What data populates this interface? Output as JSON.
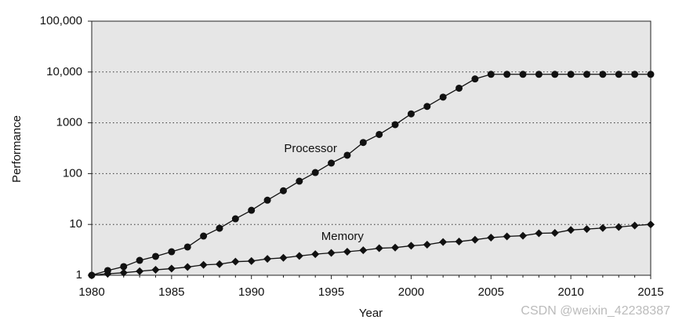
{
  "chart_data": {
    "type": "line",
    "x_label": "Year",
    "y_label": "Performance",
    "log_y": true,
    "grid": true,
    "x": [
      1980,
      1981,
      1982,
      1983,
      1984,
      1985,
      1986,
      1987,
      1988,
      1989,
      1990,
      1991,
      1992,
      1993,
      1994,
      1995,
      1996,
      1997,
      1998,
      1999,
      2000,
      2001,
      2002,
      2003,
      2004,
      2005,
      2006,
      2007,
      2008,
      2009,
      2010,
      2011,
      2012,
      2013,
      2014,
      2015
    ],
    "series": [
      {
        "name": "Processor",
        "color": "#111111",
        "marker": "circle",
        "values": [
          1,
          1.24,
          1.48,
          1.96,
          2.35,
          2.9,
          3.6,
          5.9,
          8.4,
          12.9,
          19,
          30,
          46,
          71,
          105,
          161,
          230,
          410,
          590,
          920,
          1500,
          2100,
          3200,
          4800,
          7300,
          9000,
          9000,
          9000,
          9000,
          9000,
          9000,
          9000,
          9000,
          9000,
          9000,
          9000
        ]
      },
      {
        "name": "Memory",
        "color": "#111111",
        "marker": "diamond",
        "values": [
          1,
          1.07,
          1.12,
          1.2,
          1.28,
          1.35,
          1.45,
          1.6,
          1.65,
          1.85,
          1.9,
          2.1,
          2.2,
          2.4,
          2.6,
          2.75,
          2.9,
          3.1,
          3.4,
          3.5,
          3.8,
          4,
          4.5,
          4.6,
          5,
          5.5,
          5.8,
          6,
          6.7,
          6.8,
          7.8,
          8.1,
          8.5,
          8.9,
          9.5,
          10
        ]
      }
    ],
    "annotations": [
      {
        "text": "Processor",
        "x": 1993.7,
        "y": 305
      },
      {
        "text": "Memory",
        "x": 1995.7,
        "y": 5.7
      }
    ],
    "xlim": [
      1980,
      2015
    ],
    "xticks": [
      1980,
      1985,
      1990,
      1995,
      2000,
      2005,
      2010,
      2015
    ],
    "ylim": [
      1,
      100000
    ],
    "yticks": [
      1,
      10,
      100,
      1000,
      {
        "value": 10000,
        "label": "10,000"
      },
      {
        "value": 100000,
        "label": "100,000"
      }
    ],
    "watermark": "CSDN @weixin_42238387"
  }
}
